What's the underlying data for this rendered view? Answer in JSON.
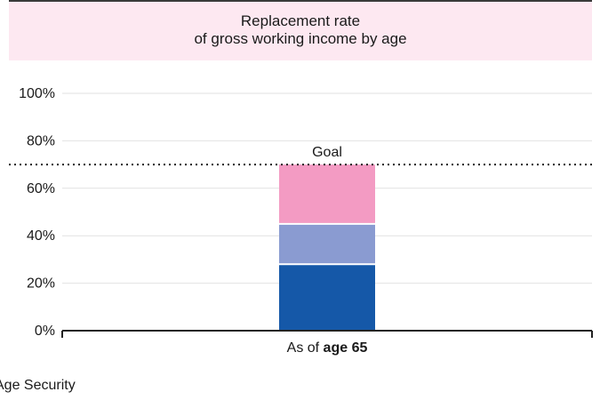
{
  "chart_data": {
    "type": "bar",
    "stacked": true,
    "title_lines": [
      "Replacement rate",
      "of gross working income by age"
    ],
    "categories": [
      {
        "prefix": "As of ",
        "bold": "age 65"
      }
    ],
    "y_tick_labels": [
      "0%",
      "20%",
      "40%",
      "60%",
      "80%",
      "100%"
    ],
    "ylim": [
      0,
      100
    ],
    "grid": true,
    "series": [
      {
        "values": [
          28
        ],
        "color": "#1558a8"
      },
      {
        "values": [
          17
        ],
        "color": "#8a9bd1"
      },
      {
        "values": [
          25
        ],
        "color": "#f39bc3"
      }
    ],
    "goal": {
      "label": "Goal",
      "value": 70
    },
    "legend_fragment": "Age Security"
  }
}
